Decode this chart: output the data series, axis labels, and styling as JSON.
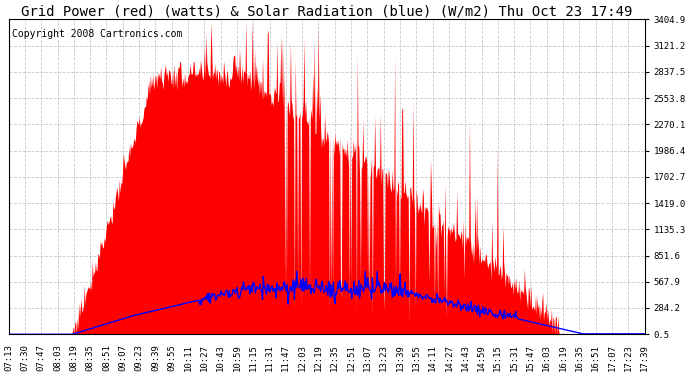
{
  "title": "Grid Power (red) (watts) & Solar Radiation (blue) (W/m2) Thu Oct 23 17:49",
  "copyright": "Copyright 2008 Cartronics.com",
  "ylabel_right_ticks": [
    0.5,
    284.2,
    567.9,
    851.6,
    1135.3,
    1419.0,
    1702.7,
    1986.4,
    2270.1,
    2553.8,
    2837.5,
    3121.2,
    3404.9
  ],
  "ymin": 0.5,
  "ymax": 3404.9,
  "background_color": "#ffffff",
  "plot_bg_color": "#ffffff",
  "grid_color": "#bbbbbb",
  "red_fill_color": "#ff0000",
  "blue_line_color": "#0000ff",
  "title_color": "#000000",
  "title_fontsize": 10,
  "copyright_fontsize": 7,
  "tick_label_fontsize": 6.5,
  "xtick_labels": [
    "07:13",
    "07:30",
    "07:47",
    "08:03",
    "08:19",
    "08:35",
    "08:51",
    "09:07",
    "09:23",
    "09:39",
    "09:55",
    "10:11",
    "10:27",
    "10:43",
    "10:59",
    "11:15",
    "11:31",
    "11:47",
    "12:03",
    "12:19",
    "12:35",
    "12:51",
    "13:07",
    "13:23",
    "13:39",
    "13:55",
    "14:11",
    "14:27",
    "14:43",
    "14:59",
    "15:15",
    "15:31",
    "15:47",
    "16:03",
    "16:19",
    "16:35",
    "16:51",
    "17:07",
    "17:23",
    "17:39"
  ]
}
